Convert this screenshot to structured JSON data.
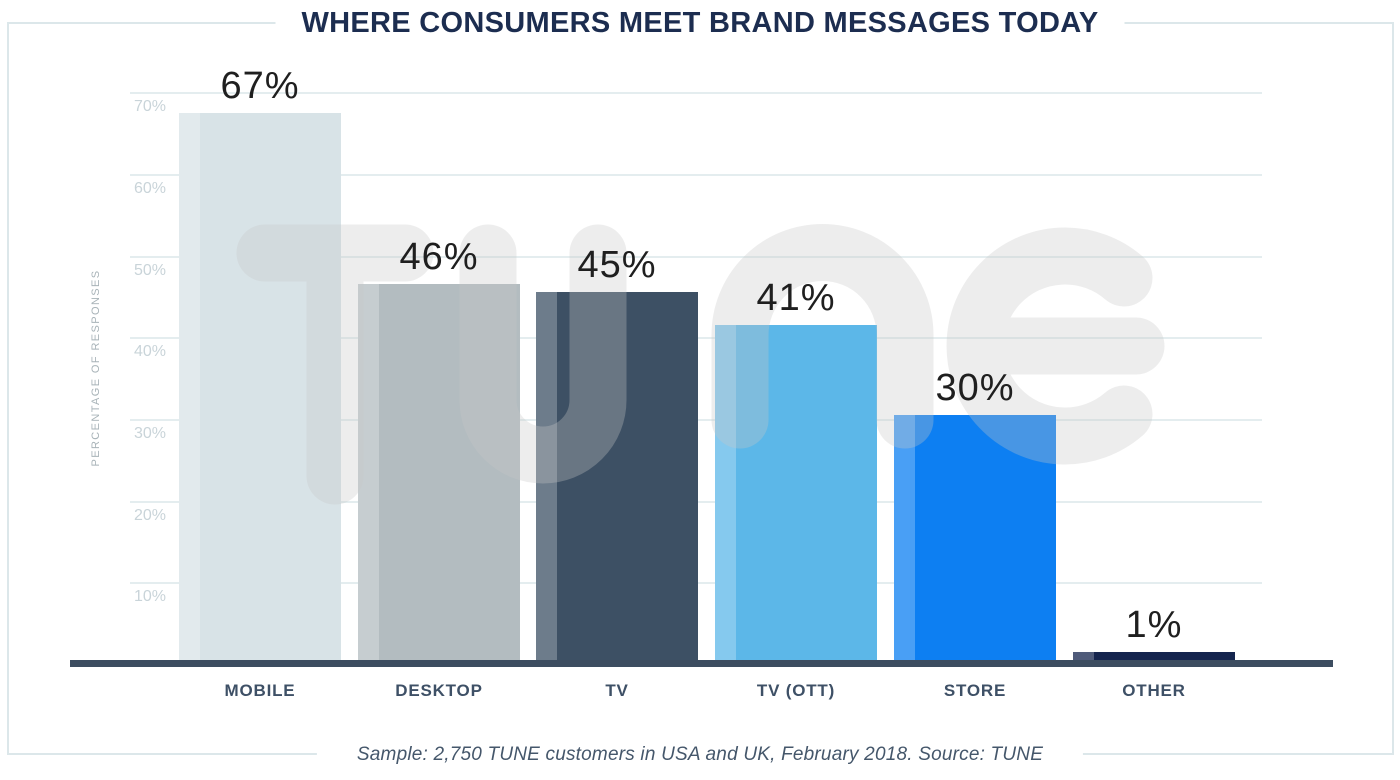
{
  "chart_data": {
    "type": "bar",
    "title": "WHERE CONSUMERS MEET BRAND MESSAGES TODAY",
    "ylabel": "PERCENTAGE OF RESPONSES",
    "xlabel": "",
    "categories": [
      "MOBILE",
      "DESKTOP",
      "TV",
      "TV (OTT)",
      "STORE",
      "OTHER"
    ],
    "values": [
      67,
      46,
      45,
      41,
      30,
      1
    ],
    "value_labels": [
      "67%",
      "46%",
      "45%",
      "41%",
      "30%",
      "1%"
    ],
    "bar_colors": [
      "#d8e3e7",
      "#b3bcc0",
      "#3d5064",
      "#5cb7e8",
      "#0d7ff2",
      "#15254e"
    ],
    "ytick_values": [
      70,
      60,
      50,
      40,
      30,
      20,
      10
    ],
    "ytick_labels": [
      "70%",
      "60%",
      "50%",
      "40%",
      "30%",
      "20%",
      "10%"
    ],
    "ylim": [
      0,
      70
    ],
    "grid": true,
    "legend": null,
    "watermark": "TUNE",
    "note": "Sample: 2,750 TUNE customers in USA and UK, February 2018. Source: TUNE"
  },
  "colors": {
    "title": "#1c2d50",
    "axis_line": "#3c4d60",
    "category": "#3e5066",
    "value": "#1f1f1f",
    "tick": "#c9d4d9",
    "grid": "#e4edef",
    "border": "#dce7ea",
    "note": "#45576b",
    "ylabel_color": "#a8b3b8",
    "watermark": "#c8c8c8",
    "background": "#ffffff"
  }
}
